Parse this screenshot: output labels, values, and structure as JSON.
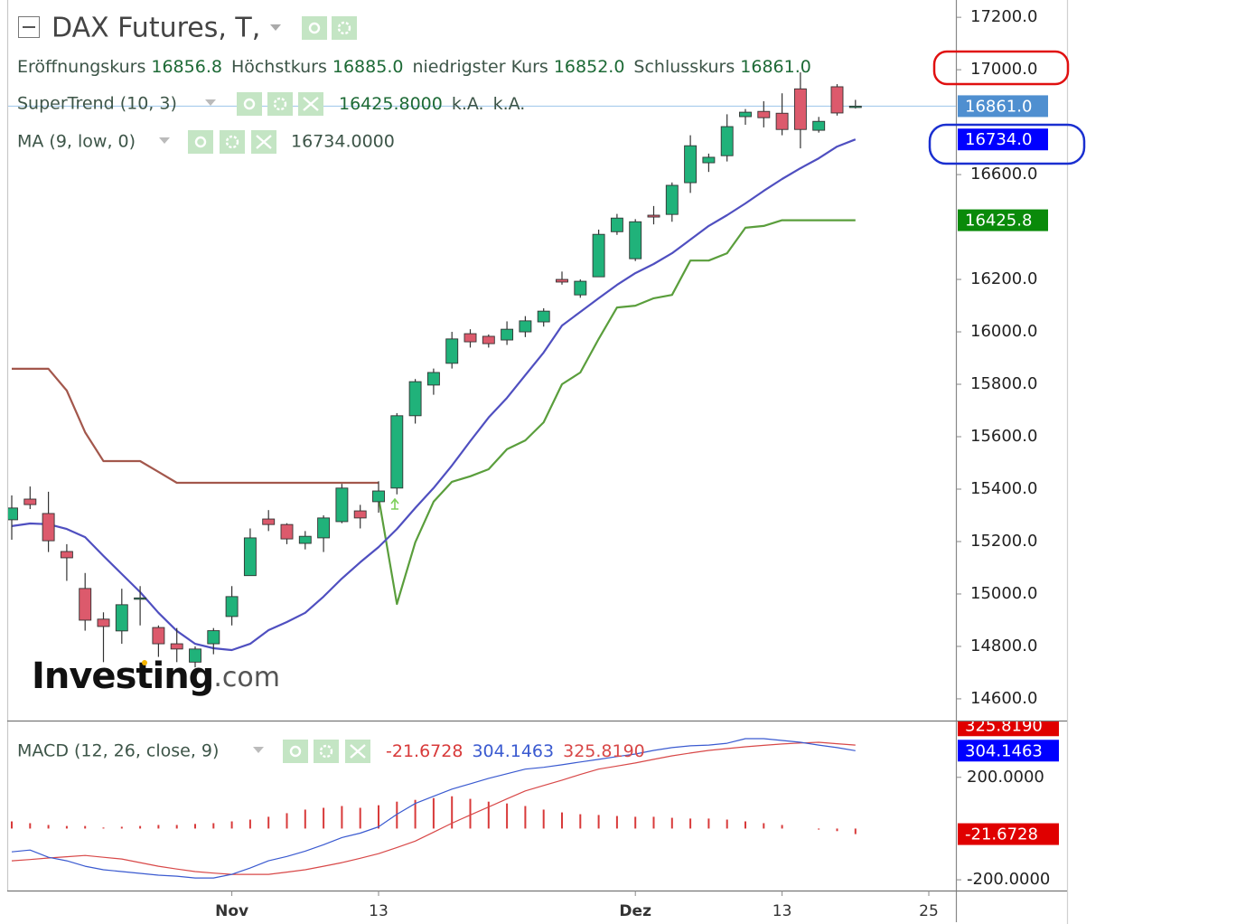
{
  "header": {
    "title": "DAX Futures, T,"
  },
  "watermark": {
    "brand": "Investing",
    "suffix": ".com"
  },
  "chart_data": [
    {
      "type": "candlestick",
      "categories": [
        null,
        null,
        null,
        null,
        null,
        null,
        null,
        null,
        null,
        null,
        null,
        null,
        "Nov",
        null,
        null,
        null,
        null,
        null,
        null,
        null,
        "13",
        null,
        null,
        null,
        null,
        null,
        null,
        null,
        null,
        null,
        null,
        null,
        null,
        null,
        "Dez",
        null,
        null,
        null,
        null,
        null,
        null,
        null,
        "13",
        null,
        null,
        null,
        null,
        null,
        null,
        null,
        "25"
      ],
      "open": [
        15283,
        15362,
        15307,
        15162,
        15021,
        14904,
        14859,
        14980,
        14872,
        14810,
        14740,
        14810,
        14914,
        15070,
        15286,
        15265,
        15193,
        15214,
        15276,
        15317,
        15352,
        15404,
        15680,
        15797,
        15880,
        15993,
        15983,
        15969,
        16000,
        16038,
        16200,
        16141,
        16210,
        16382,
        16279,
        16445,
        16448,
        16569,
        16645,
        16672,
        16821,
        16841,
        16834,
        16927,
        16769,
        16935,
        16856.8,
        null,
        null,
        null,
        null
      ],
      "high": [
        15376,
        15410,
        15390,
        15190,
        15080,
        14930,
        15020,
        15030,
        14880,
        14870,
        14800,
        14870,
        15030,
        15250,
        15320,
        15270,
        15240,
        15300,
        15420,
        15340,
        15430,
        15690,
        15820,
        15860,
        16000,
        16010,
        15990,
        16040,
        16060,
        16090,
        16230,
        16200,
        16390,
        16450,
        16430,
        16480,
        16570,
        16750,
        16680,
        16830,
        16850,
        16880,
        16910,
        16990,
        16820,
        16945,
        16885,
        null,
        null,
        null,
        null
      ],
      "low": [
        15207,
        15324,
        15160,
        15050,
        14860,
        14740,
        14810,
        14880,
        14760,
        14740,
        14720,
        14770,
        14880,
        15070,
        15240,
        15190,
        15170,
        15160,
        15270,
        15250,
        15310,
        15380,
        15650,
        15760,
        15860,
        15940,
        15940,
        15950,
        15980,
        16020,
        16180,
        16130,
        16210,
        16370,
        16270,
        16410,
        16420,
        16530,
        16610,
        16650,
        16790,
        16780,
        16750,
        16700,
        16760,
        16825,
        16852,
        null,
        null,
        null,
        null
      ],
      "close": [
        15328,
        15341,
        15203,
        15138,
        14900,
        14876,
        14959,
        14985,
        14810,
        14790,
        14790,
        14860,
        14990,
        15214,
        15265,
        15210,
        15220,
        15290,
        15404,
        15290,
        15393,
        15680,
        15810,
        15845,
        15973,
        15962,
        15955,
        16010,
        16042,
        16079,
        16190,
        16193,
        16372,
        16434,
        16420,
        16438,
        16559,
        16710,
        16666,
        16783,
        16838,
        16817,
        16772,
        16772,
        16803,
        16835,
        16861,
        null,
        null,
        null,
        null
      ],
      "up_color": "#20b27a",
      "down_color": "#dc5a6c",
      "ohlc_legend": [
        {
          "label": "Eröffnungskurs",
          "value": "16856.8"
        },
        {
          "label": "Höchstkurs",
          "value": "16885.0"
        },
        {
          "label": "niedrigster Kurs",
          "value": "16852.0"
        },
        {
          "label": "Schlusskurs",
          "value": "16861.0"
        }
      ],
      "close_badge": "16861.0",
      "close_badge_color": "#4f8fd0",
      "overlays": [
        {
          "name": "SuperTrend (10, 3)",
          "legend_value": "16425.8000",
          "legend_extra": [
            "k.A.",
            "k.A."
          ],
          "pieces": [
            {
              "color": "#a3574c",
              "values": [
                15859,
                15859,
                15859,
                15776,
                15617,
                15507,
                15507,
                15507,
                15466,
                15424,
                15424,
                15424,
                15424,
                15424,
                15424,
                15424,
                15424,
                15424,
                15424,
                15424,
                15424,
                null,
                null,
                null,
                null,
                null,
                null,
                null,
                null,
                null,
                null,
                null,
                null,
                null,
                null,
                null,
                null,
                null,
                null,
                null,
                null,
                null,
                null,
                null,
                null,
                null,
                null,
                null,
                null,
                null,
                null
              ]
            },
            {
              "color": "#5a9e3c",
              "values": [
                null,
                null,
                null,
                null,
                null,
                null,
                null,
                null,
                null,
                null,
                null,
                null,
                null,
                null,
                null,
                null,
                null,
                null,
                null,
                null,
                15369,
                14962,
                15197,
                15352,
                15428,
                15449,
                15476,
                15552,
                15586,
                15655,
                15800,
                15845,
                15973,
                16093,
                16100,
                16128,
                16141,
                16272,
                16272,
                16300,
                16397,
                16404,
                16425.8,
                16425.8,
                16425.8,
                16425.8,
                16425.8,
                null,
                null,
                null,
                null
              ]
            }
          ],
          "badge": "16425.8",
          "badge_color": "#0a8a0a"
        },
        {
          "name": "MA (9, low, 0)",
          "legend_value": "16734.0000",
          "color": "#4f4fc0",
          "values": [
            15259,
            15269,
            15266,
            15248,
            15217,
            15145,
            15076,
            15007,
            14928,
            14859,
            14810,
            14793,
            14786,
            14810,
            14862,
            14893,
            14928,
            14990,
            15059,
            15121,
            15179,
            15248,
            15328,
            15404,
            15490,
            15583,
            15673,
            15748,
            15835,
            15921,
            16024,
            16076,
            16128,
            16179,
            16224,
            16259,
            16300,
            16352,
            16404,
            16445,
            16490,
            16538,
            16583,
            16624,
            16662,
            16707,
            16734,
            null,
            null,
            null,
            null
          ],
          "badge": "16734.0",
          "badge_color": "#0000ff"
        }
      ],
      "ylim": [
        14517,
        17266
      ],
      "yticks": [
        {
          "value": 14600,
          "label": "14600.0"
        },
        {
          "value": 14800,
          "label": "14800.0"
        },
        {
          "value": 15000,
          "label": "15000.0"
        },
        {
          "value": 15200,
          "label": "15200.0"
        },
        {
          "value": 15400,
          "label": "15400.0"
        },
        {
          "value": 15600,
          "label": "15600.0"
        },
        {
          "value": 15800,
          "label": "15800.0"
        },
        {
          "value": 16000,
          "label": "16000.0"
        },
        {
          "value": 16200,
          "label": "16200.0"
        },
        {
          "value": 16600,
          "label": "16600.0"
        },
        {
          "value": 17000,
          "label": "17000.0"
        },
        {
          "value": 17200,
          "label": "17200.0"
        }
      ],
      "grid": false
    },
    {
      "type": "macd",
      "name": "MACD (12, 26, close, 9)",
      "histogram": {
        "color": "#d83a3a",
        "label": "-21.6728",
        "badge_color": "#e00000",
        "values": [
          28,
          21,
          14,
          10,
          10,
          4,
          7,
          10,
          14,
          14,
          18,
          21,
          28,
          35,
          46,
          60,
          74,
          81,
          88,
          81,
          91,
          105,
          112,
          119,
          126,
          116,
          105,
          98,
          88,
          74,
          63,
          56,
          53,
          49,
          46,
          46,
          42,
          39,
          39,
          35,
          28,
          21,
          14,
          null,
          -4,
          -10,
          -21.6728,
          null,
          null,
          null,
          null
        ]
      },
      "macd": {
        "color": "#3a5ad0",
        "label": "304.1463",
        "badge_color": "#0000ff",
        "values": [
          -91,
          -84,
          -112,
          -126,
          -147,
          -161,
          -168,
          -175,
          -182,
          -186,
          -193,
          -193,
          -179,
          -154,
          -126,
          -109,
          -88,
          -63,
          -35,
          -18,
          7,
          56,
          98,
          126,
          154,
          175,
          196,
          214,
          232,
          239,
          249,
          260,
          270,
          281,
          291,
          305,
          316,
          323,
          326,
          333,
          351,
          351,
          344,
          337,
          326,
          316,
          304.1463,
          null,
          null,
          null,
          null
        ]
      },
      "signal": {
        "color": "#d84848",
        "label": "325.8190",
        "badge_color": "#e00000",
        "values": [
          -126,
          -121,
          -115,
          -110,
          -105,
          -112,
          -119,
          -133,
          -147,
          -158,
          -168,
          -174,
          -179,
          -179,
          -179,
          -170,
          -161,
          -147,
          -133,
          -116,
          -98,
          -74,
          -49,
          -14,
          21,
          53,
          84,
          116,
          147,
          168,
          189,
          211,
          232,
          244,
          256,
          270,
          284,
          295,
          305,
          312,
          319,
          325,
          330,
          334,
          337,
          331,
          325.819,
          null,
          null,
          null,
          null
        ]
      },
      "ylim": [
        -242,
        418
      ],
      "yticks": [
        {
          "value": 200,
          "label": "200.0000"
        },
        {
          "value": -200,
          "label": "-200.0000"
        }
      ]
    }
  ]
}
